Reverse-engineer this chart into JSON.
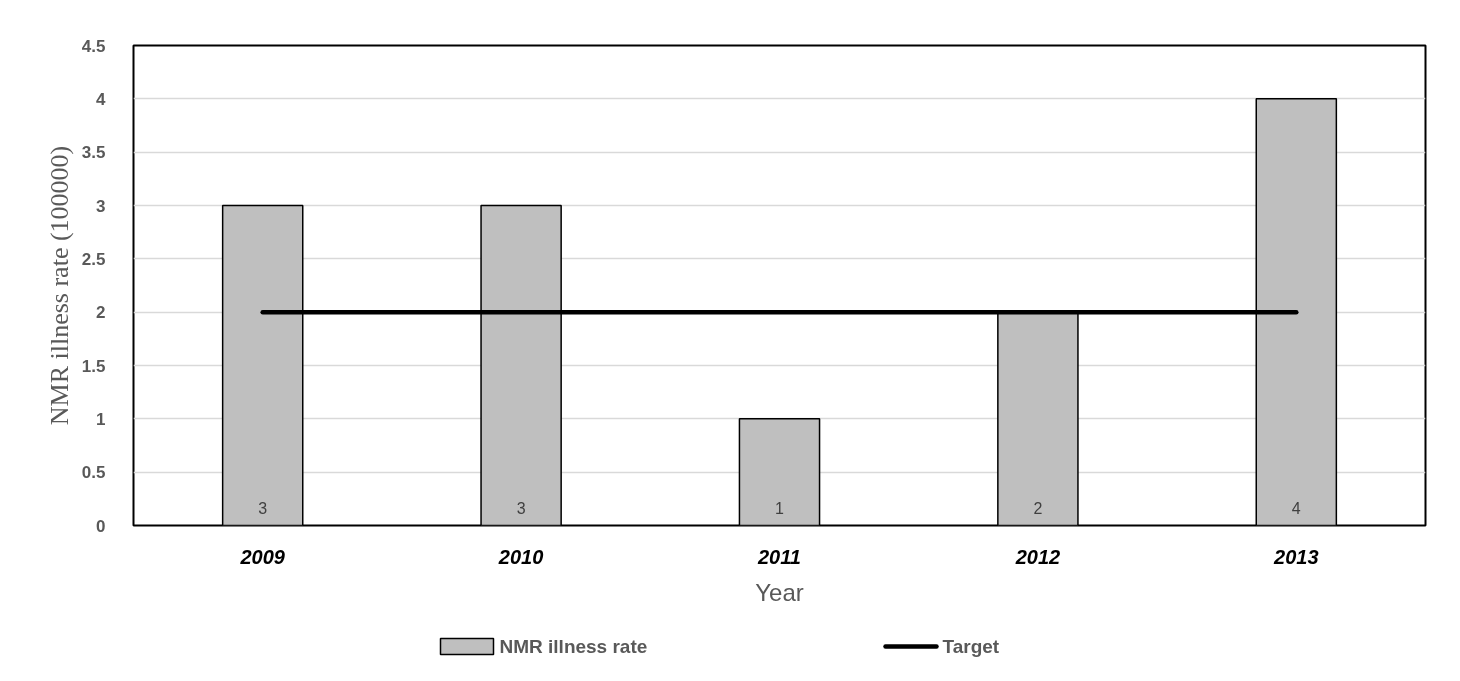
{
  "chart_data": {
    "type": "bar",
    "xlabel": "Year",
    "ylabel": "NMR illness rate (100000)",
    "categories": [
      "2009",
      "2010",
      "2011",
      "2012",
      "2013"
    ],
    "series": [
      {
        "name": "NMR illness rate",
        "color": "#bfbfbf",
        "values": [
          3,
          3,
          1,
          2,
          4
        ],
        "value_labels": [
          "3",
          "3",
          "1",
          "2",
          "4"
        ]
      },
      {
        "name": "Target",
        "type": "line",
        "color": "#000000",
        "values": [
          2,
          2,
          2,
          2,
          2
        ]
      }
    ],
    "ylim": [
      0,
      4.5
    ],
    "yticks": [
      0,
      0.5,
      1,
      1.5,
      2,
      2.5,
      3,
      3.5,
      4,
      4.5
    ],
    "grid": "y",
    "legend": "bottom"
  }
}
